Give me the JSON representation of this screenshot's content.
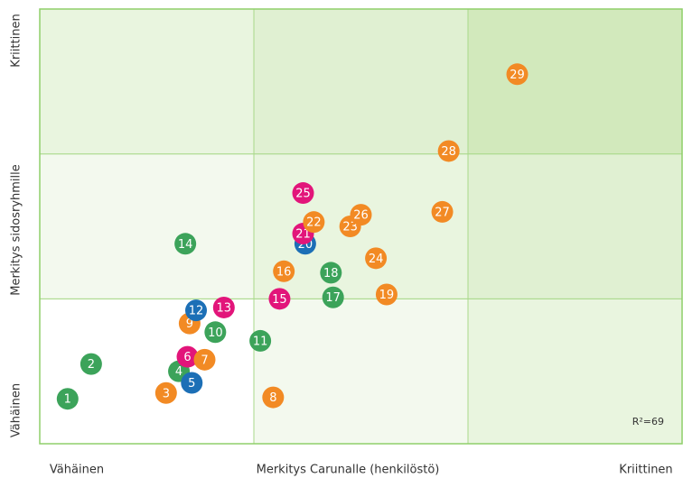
{
  "chart_data": {
    "type": "scatter",
    "x_low_label": "Vähäinen",
    "x_title": "Merkitys Carunalle (henkilöstö)",
    "x_high_label": "Kriittinen",
    "y_low_label": "Vähäinen",
    "y_title": "Merkitys sidosryhmille",
    "y_high_label": "Kriittinen",
    "annotation": "R²=69",
    "xlim": [
      0,
      3
    ],
    "ylim": [
      0,
      3
    ],
    "labels": [
      "1",
      "2",
      "3",
      "4",
      "5",
      "6",
      "7",
      "8",
      "9",
      "10",
      "11",
      "12",
      "13",
      "14",
      "15",
      "16",
      "17",
      "18",
      "19",
      "20",
      "21",
      "22",
      "23",
      "24",
      "25",
      "26",
      "27",
      "28",
      "29"
    ],
    "x": [
      0.13,
      0.24,
      0.59,
      0.65,
      0.71,
      0.69,
      0.77,
      1.09,
      0.7,
      0.82,
      1.03,
      0.73,
      0.86,
      0.68,
      1.12,
      1.14,
      1.37,
      1.36,
      1.62,
      1.24,
      1.23,
      1.28,
      1.45,
      1.57,
      1.23,
      1.5,
      1.88,
      1.91,
      2.23
    ],
    "y": [
      0.31,
      0.55,
      0.35,
      0.5,
      0.42,
      0.6,
      0.58,
      0.32,
      0.83,
      0.77,
      0.71,
      0.92,
      0.94,
      1.38,
      1.0,
      1.19,
      1.01,
      1.18,
      1.03,
      1.38,
      1.45,
      1.53,
      1.5,
      1.28,
      1.73,
      1.58,
      1.6,
      2.02,
      2.55
    ],
    "colors": [
      "#3ca35a",
      "#3ca35a",
      "#f28a24",
      "#3ca35a",
      "#1c6fb6",
      "#e2157a",
      "#f28a24",
      "#f28a24",
      "#f28a24",
      "#3ca35a",
      "#3ca35a",
      "#1c6fb6",
      "#e2157a",
      "#3ca35a",
      "#e2157a",
      "#f28a24",
      "#3ca35a",
      "#3ca35a",
      "#f28a24",
      "#1c6fb6",
      "#e2157a",
      "#f28a24",
      "#f28a24",
      "#f28a24",
      "#e2157a",
      "#f28a24",
      "#f28a24",
      "#f28a24",
      "#f28a24"
    ]
  }
}
